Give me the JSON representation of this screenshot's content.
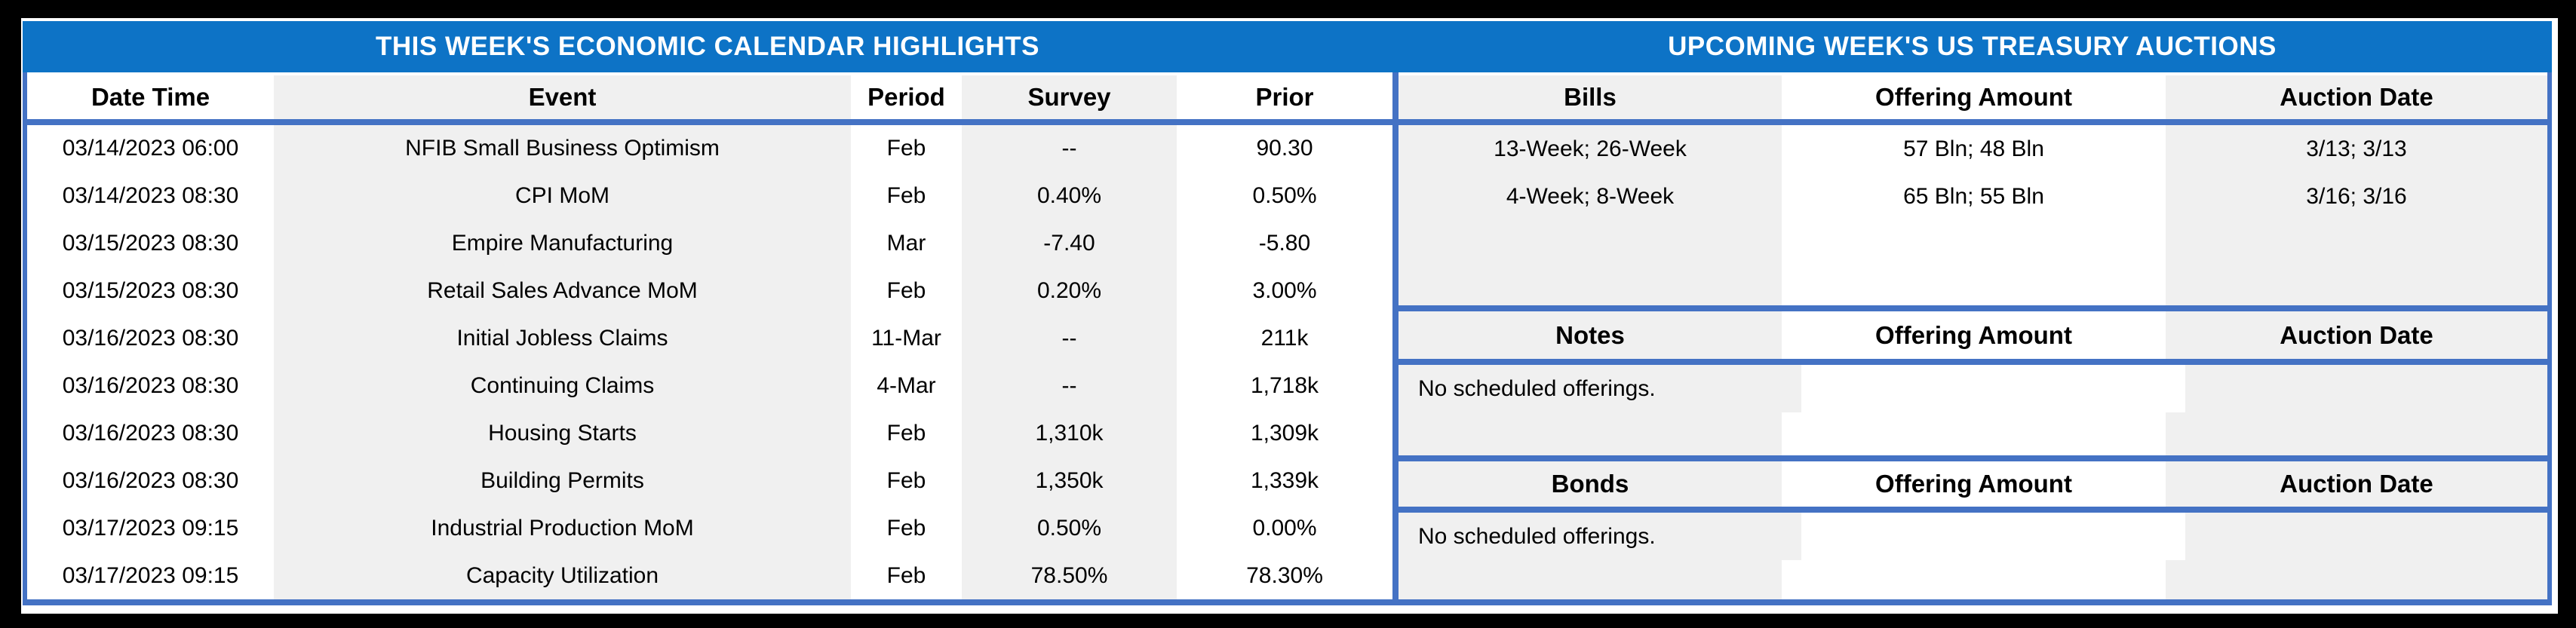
{
  "calendar": {
    "title": "THIS WEEK'S ECONOMIC CALENDAR HIGHLIGHTS",
    "columns": {
      "date": "Date Time",
      "event": "Event",
      "period": "Period",
      "survey": "Survey",
      "prior": "Prior"
    },
    "rows": [
      {
        "date": "03/14/2023 06:00",
        "event": "NFIB Small Business Optimism",
        "period": "Feb",
        "survey": "--",
        "prior": "90.30"
      },
      {
        "date": "03/14/2023 08:30",
        "event": "CPI MoM",
        "period": "Feb",
        "survey": "0.40%",
        "prior": "0.50%"
      },
      {
        "date": "03/15/2023 08:30",
        "event": "Empire Manufacturing",
        "period": "Mar",
        "survey": "-7.40",
        "prior": "-5.80"
      },
      {
        "date": "03/15/2023 08:30",
        "event": "Retail Sales Advance MoM",
        "period": "Feb",
        "survey": "0.20%",
        "prior": "3.00%"
      },
      {
        "date": "03/16/2023 08:30",
        "event": "Initial Jobless Claims",
        "period": "11-Mar",
        "survey": "--",
        "prior": "211k"
      },
      {
        "date": "03/16/2023 08:30",
        "event": "Continuing Claims",
        "period": "4-Mar",
        "survey": "--",
        "prior": "1,718k"
      },
      {
        "date": "03/16/2023 08:30",
        "event": "Housing Starts",
        "period": "Feb",
        "survey": "1,310k",
        "prior": "1,309k"
      },
      {
        "date": "03/16/2023 08:30",
        "event": "Building Permits",
        "period": "Feb",
        "survey": "1,350k",
        "prior": "1,339k"
      },
      {
        "date": "03/17/2023 09:15",
        "event": "Industrial Production MoM",
        "period": "Feb",
        "survey": "0.50%",
        "prior": "0.00%"
      },
      {
        "date": "03/17/2023 09:15",
        "event": "Capacity Utilization",
        "period": "Feb",
        "survey": "78.50%",
        "prior": "78.30%"
      }
    ]
  },
  "auctions": {
    "title": "UPCOMING WEEK'S US TREASURY AUCTIONS",
    "column_headers": {
      "offering": "Offering Amount",
      "auction": "Auction Date"
    },
    "sections": [
      {
        "label": "Bills",
        "rows": [
          {
            "security": "13-Week; 26-Week",
            "offering": "57 Bln; 48 Bln",
            "auction": "3/13; 3/13"
          },
          {
            "security": "4-Week; 8-Week",
            "offering": "65 Bln; 55 Bln",
            "auction": "3/16; 3/16"
          }
        ]
      },
      {
        "label": "Notes",
        "note": "No scheduled offerings."
      },
      {
        "label": "Bonds",
        "note": "No scheduled offerings."
      }
    ]
  },
  "colors": {
    "band_blue": "#0d73c6",
    "border_blue": "#4472c4",
    "stripe_gray": "#f0f0f0",
    "text_black": "#000000",
    "frame_black": "#000000"
  }
}
